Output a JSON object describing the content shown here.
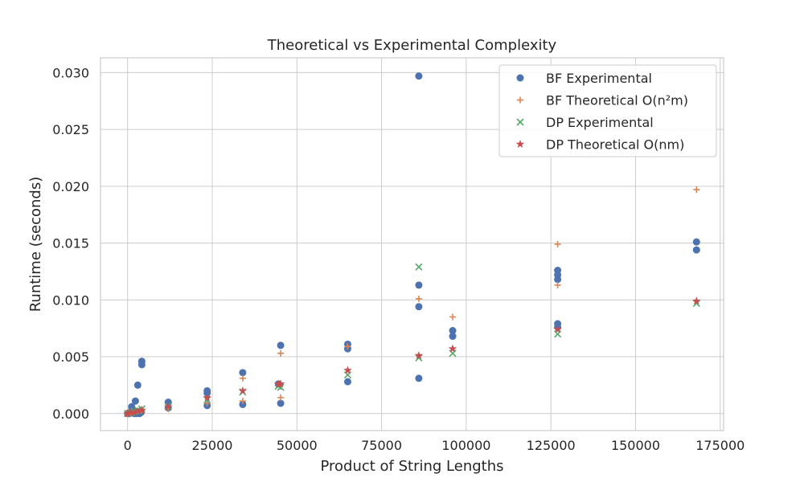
{
  "chart_data": {
    "type": "scatter",
    "title": "Theoretical vs Experimental Complexity",
    "xlabel": "Product of String Lengths",
    "ylabel": "Runtime (seconds)",
    "xlim": [
      -8000,
      176000
    ],
    "ylim": [
      -0.0015,
      0.0313
    ],
    "xticks": [
      0,
      25000,
      50000,
      75000,
      100000,
      125000,
      150000,
      175000
    ],
    "xtick_labels": [
      "0",
      "25000",
      "50000",
      "75000",
      "100000",
      "125000",
      "150000",
      "175000"
    ],
    "yticks": [
      0.0,
      0.005,
      0.01,
      0.015,
      0.02,
      0.025,
      0.03
    ],
    "ytick_labels": [
      "0.000",
      "0.005",
      "0.010",
      "0.015",
      "0.020",
      "0.025",
      "0.030"
    ],
    "grid": true,
    "legend_position": "upper right",
    "series": [
      {
        "name": "BF Experimental",
        "marker": "circle",
        "color": "#4c72b0",
        "points": [
          [
            0,
            0.0
          ],
          [
            200,
            0.0
          ],
          [
            500,
            0.0
          ],
          [
            1000,
            0.0001
          ],
          [
            1200,
            0.0006
          ],
          [
            1500,
            0.0003
          ],
          [
            2000,
            0.0
          ],
          [
            2300,
            0.0011
          ],
          [
            2600,
            0.0
          ],
          [
            3000,
            0.0025
          ],
          [
            3500,
            0.0
          ],
          [
            4000,
            0.0001
          ],
          [
            4200,
            0.0046
          ],
          [
            4200,
            0.0043
          ],
          [
            12000,
            0.001
          ],
          [
            12000,
            0.0005
          ],
          [
            23500,
            0.002
          ],
          [
            23500,
            0.0018
          ],
          [
            23500,
            0.0007
          ],
          [
            34000,
            0.0036
          ],
          [
            34000,
            0.0008
          ],
          [
            44500,
            0.0026
          ],
          [
            45200,
            0.006
          ],
          [
            45200,
            0.0009
          ],
          [
            65000,
            0.0061
          ],
          [
            65000,
            0.0057
          ],
          [
            65000,
            0.0028
          ],
          [
            86000,
            0.0297
          ],
          [
            86000,
            0.0113
          ],
          [
            86000,
            0.0094
          ],
          [
            86000,
            0.0031
          ],
          [
            96000,
            0.0073
          ],
          [
            96000,
            0.0068
          ],
          [
            127000,
            0.0126
          ],
          [
            127000,
            0.0122
          ],
          [
            127000,
            0.0118
          ],
          [
            127000,
            0.0079
          ],
          [
            127000,
            0.0076
          ],
          [
            168000,
            0.0151
          ],
          [
            168000,
            0.0144
          ]
        ]
      },
      {
        "name": "BF Theoretical O(n²m)",
        "marker": "plus",
        "color": "#dd8452",
        "points": [
          [
            0,
            0.0
          ],
          [
            1000,
            0.0001
          ],
          [
            2000,
            0.0001
          ],
          [
            3000,
            0.0002
          ],
          [
            4200,
            0.0003
          ],
          [
            12000,
            0.0004
          ],
          [
            23500,
            0.0009
          ],
          [
            34000,
            0.0031
          ],
          [
            34000,
            0.0011
          ],
          [
            45200,
            0.0053
          ],
          [
            45200,
            0.0014
          ],
          [
            65000,
            0.0059
          ],
          [
            86000,
            0.0101
          ],
          [
            96000,
            0.0085
          ],
          [
            127000,
            0.0149
          ],
          [
            127000,
            0.0113
          ],
          [
            168000,
            0.0197
          ]
        ]
      },
      {
        "name": "DP Experimental",
        "marker": "x",
        "color": "#55a868",
        "points": [
          [
            0,
            0.0
          ],
          [
            1000,
            0.0001
          ],
          [
            2000,
            0.0002
          ],
          [
            3000,
            0.0003
          ],
          [
            4200,
            0.0004
          ],
          [
            12000,
            0.0006
          ],
          [
            23500,
            0.0012
          ],
          [
            34000,
            0.0019
          ],
          [
            44500,
            0.0024
          ],
          [
            45200,
            0.0023
          ],
          [
            65000,
            0.0034
          ],
          [
            86000,
            0.0129
          ],
          [
            86000,
            0.0049
          ],
          [
            96000,
            0.0053
          ],
          [
            127000,
            0.007
          ],
          [
            168000,
            0.0097
          ]
        ]
      },
      {
        "name": "DP Theoretical O(nm)",
        "marker": "star",
        "color": "#c44e52",
        "points": [
          [
            0,
            0.0
          ],
          [
            1000,
            0.0001
          ],
          [
            2000,
            0.0001
          ],
          [
            3000,
            0.0002
          ],
          [
            4200,
            0.0003
          ],
          [
            12000,
            0.0006
          ],
          [
            23500,
            0.0014
          ],
          [
            34000,
            0.002
          ],
          [
            44500,
            0.0026
          ],
          [
            45200,
            0.0026
          ],
          [
            65000,
            0.0038
          ],
          [
            86000,
            0.0051
          ],
          [
            96000,
            0.0057
          ],
          [
            127000,
            0.0074
          ],
          [
            168000,
            0.0099
          ]
        ]
      }
    ]
  }
}
